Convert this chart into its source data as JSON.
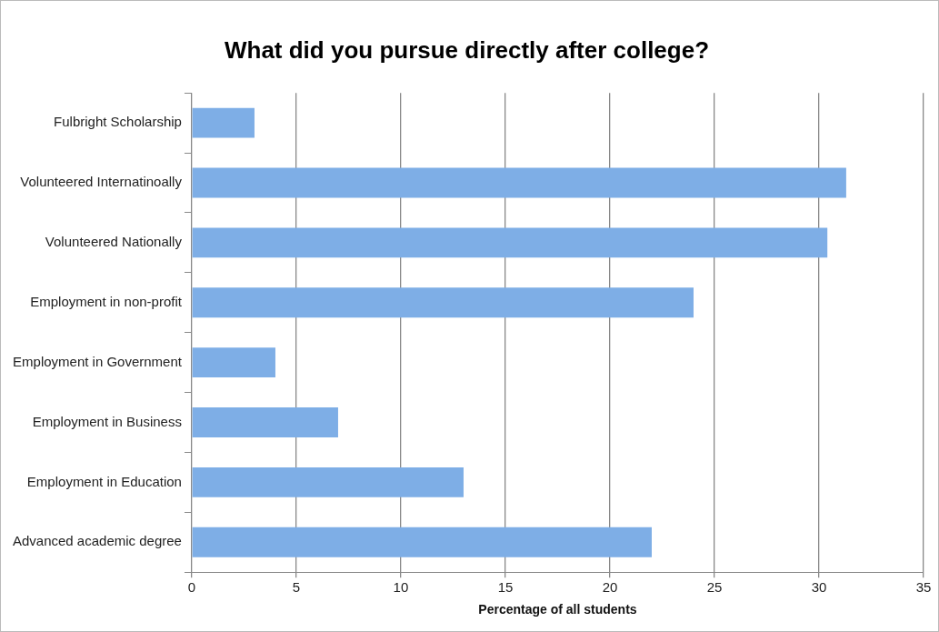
{
  "chart_data": {
    "type": "bar",
    "orientation": "horizontal",
    "title": "What did you pursue directly after college?",
    "xlabel": "Percentage of all students",
    "categories": [
      "Fulbright Scholarship",
      "Volunteered Internatinoally",
      "Volunteered Nationally",
      "Employment in non-profit",
      "Employment in Government",
      "Employment in Business",
      "Employment in Education",
      "Advanced academic degree"
    ],
    "values": [
      3,
      31.3,
      30.4,
      24,
      4,
      7,
      13,
      22
    ],
    "color": "#7eaee6",
    "xlim": [
      0,
      35
    ],
    "xticks": [
      0,
      5,
      10,
      15,
      20,
      25,
      30,
      35
    ],
    "grid": "x",
    "legend": false
  }
}
